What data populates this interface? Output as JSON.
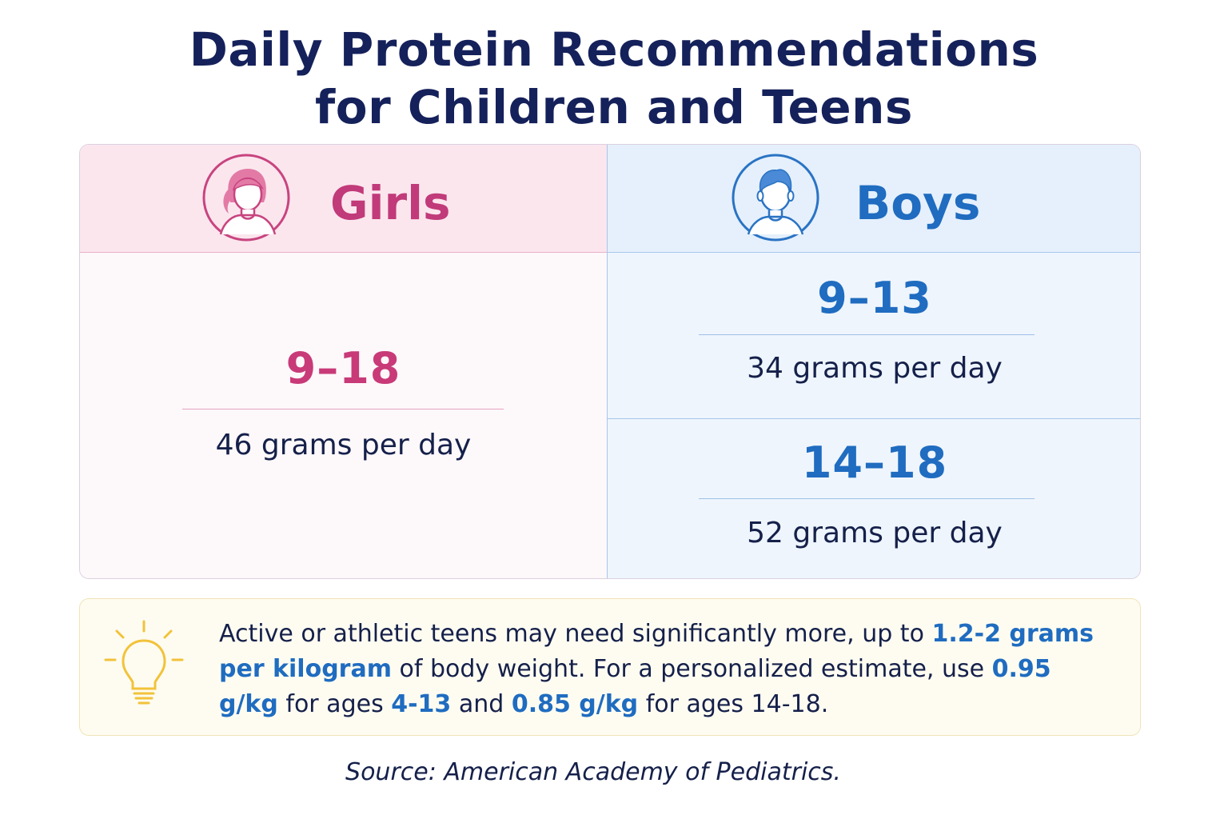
{
  "title": {
    "line1": "Daily Protein Recommendations",
    "line2": "for Children and Teens"
  },
  "girls": {
    "label": "Girls",
    "icon": "girl-avatar-icon",
    "rows": [
      {
        "age": "9–18",
        "amount": "46 grams per day"
      }
    ]
  },
  "boys": {
    "label": "Boys",
    "icon": "boy-avatar-icon",
    "rows": [
      {
        "age": "9–13",
        "amount": "34 grams per day"
      },
      {
        "age": "14–18",
        "amount": "52 grams per day"
      }
    ]
  },
  "tip": {
    "icon": "lightbulb-icon",
    "parts": [
      "Active or athletic teens may need significantly more, up to ",
      "1.2-2 grams per kilogram",
      " of body weight. For a personalized estimate, use ",
      "0.95 g/kg",
      " for ages ",
      "4-13",
      " and ",
      "0.85 g/kg",
      " for ages 14-18."
    ]
  },
  "source": "Source: American Academy of Pediatrics.",
  "colors": {
    "title": "#15215a",
    "girls_accent": "#c13a79",
    "boys_accent": "#1f6cc0",
    "tip_highlight": "#1f6cc0",
    "bulb": "#f2c23a"
  }
}
